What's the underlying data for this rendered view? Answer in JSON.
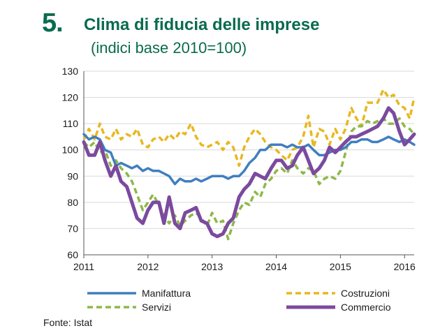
{
  "header": {
    "number": "5.",
    "title": "Clima di fiducia delle imprese",
    "subtitle": "(indici base 2010=100)"
  },
  "source": "Fonte: Istat",
  "chart_data": {
    "type": "line",
    "title": "Clima di fiducia delle imprese",
    "subtitle": "(indici base 2010=100)",
    "xlabel": "",
    "ylabel": "",
    "xlim": [
      2011,
      2016.15
    ],
    "ylim": [
      60,
      130
    ],
    "xticks": [
      2011,
      2012,
      2013,
      2014,
      2015,
      2016
    ],
    "yticks": [
      60,
      70,
      80,
      90,
      100,
      110,
      120,
      130
    ],
    "grid": "horizontal",
    "legend_position": "bottom",
    "series": [
      {
        "name": "Manifattura",
        "color": "#3f7fc0",
        "style": "solid",
        "x": [
          2011.0,
          2011.08,
          2011.17,
          2011.25,
          2011.33,
          2011.42,
          2011.5,
          2011.58,
          2011.67,
          2011.75,
          2011.83,
          2011.92,
          2012.0,
          2012.08,
          2012.17,
          2012.25,
          2012.33,
          2012.42,
          2012.5,
          2012.58,
          2012.67,
          2012.75,
          2012.83,
          2012.92,
          2013.0,
          2013.08,
          2013.17,
          2013.25,
          2013.33,
          2013.42,
          2013.5,
          2013.58,
          2013.67,
          2013.75,
          2013.83,
          2013.92,
          2014.0,
          2014.08,
          2014.17,
          2014.25,
          2014.33,
          2014.42,
          2014.5,
          2014.58,
          2014.67,
          2014.75,
          2014.83,
          2014.92,
          2015.0,
          2015.08,
          2015.17,
          2015.25,
          2015.33,
          2015.42,
          2015.5,
          2015.58,
          2015.67,
          2015.75,
          2015.83,
          2015.92,
          2016.0,
          2016.08,
          2016.15
        ],
        "values": [
          106,
          104,
          105,
          104,
          100,
          99,
          94,
          95,
          94,
          93,
          94,
          92,
          93,
          92,
          92,
          91,
          90,
          87,
          89,
          88,
          88,
          89,
          88,
          89,
          90,
          90,
          90,
          89,
          90,
          90,
          92,
          95,
          97,
          100,
          100,
          102,
          102,
          102,
          101,
          102,
          101,
          101,
          102,
          100,
          98,
          98,
          99,
          100,
          100,
          101,
          103,
          103,
          104,
          104,
          103,
          103,
          104,
          105,
          104,
          103,
          104,
          103,
          102
        ]
      },
      {
        "name": "Costruzioni",
        "color": "#e8b820",
        "style": "dashed",
        "x": [
          2011.0,
          2011.08,
          2011.17,
          2011.25,
          2011.33,
          2011.42,
          2011.5,
          2011.58,
          2011.67,
          2011.75,
          2011.83,
          2011.92,
          2012.0,
          2012.08,
          2012.17,
          2012.25,
          2012.33,
          2012.42,
          2012.5,
          2012.58,
          2012.67,
          2012.75,
          2012.83,
          2012.92,
          2013.0,
          2013.08,
          2013.17,
          2013.25,
          2013.33,
          2013.42,
          2013.5,
          2013.58,
          2013.67,
          2013.75,
          2013.83,
          2013.92,
          2014.0,
          2014.08,
          2014.17,
          2014.25,
          2014.33,
          2014.42,
          2014.5,
          2014.58,
          2014.67,
          2014.75,
          2014.83,
          2014.92,
          2015.0,
          2015.08,
          2015.17,
          2015.25,
          2015.33,
          2015.42,
          2015.5,
          2015.58,
          2015.67,
          2015.75,
          2015.83,
          2015.92,
          2016.0,
          2016.08,
          2016.15
        ],
        "values": [
          104,
          108,
          104,
          110,
          105,
          104,
          108,
          104,
          106,
          105,
          108,
          102,
          101,
          104,
          105,
          103,
          106,
          104,
          107,
          106,
          110,
          105,
          102,
          101,
          102,
          103,
          100,
          103,
          101,
          94,
          101,
          105,
          108,
          106,
          103,
          101,
          100,
          98,
          96,
          100,
          101,
          105,
          113,
          101,
          108,
          107,
          102,
          108,
          104,
          108,
          116,
          112,
          109,
          118,
          118,
          118,
          123,
          120,
          121,
          117,
          116,
          112,
          120
        ]
      },
      {
        "name": "Servizi",
        "color": "#8db848",
        "style": "dashed",
        "x": [
          2011.0,
          2011.08,
          2011.17,
          2011.25,
          2011.33,
          2011.42,
          2011.5,
          2011.58,
          2011.67,
          2011.75,
          2011.83,
          2011.92,
          2012.0,
          2012.08,
          2012.17,
          2012.25,
          2012.33,
          2012.42,
          2012.5,
          2012.58,
          2012.67,
          2012.75,
          2012.83,
          2012.92,
          2013.0,
          2013.08,
          2013.17,
          2013.25,
          2013.33,
          2013.42,
          2013.5,
          2013.58,
          2013.67,
          2013.75,
          2013.83,
          2013.92,
          2014.0,
          2014.08,
          2014.17,
          2014.25,
          2014.33,
          2014.42,
          2014.5,
          2014.58,
          2014.67,
          2014.75,
          2014.83,
          2014.92,
          2015.0,
          2015.08,
          2015.17,
          2015.25,
          2015.33,
          2015.42,
          2015.5,
          2015.58,
          2015.67,
          2015.75,
          2015.83,
          2015.92,
          2016.0,
          2016.08,
          2016.15
        ],
        "values": [
          103,
          101,
          103,
          99,
          100,
          94,
          96,
          93,
          91,
          88,
          83,
          77,
          80,
          83,
          79,
          75,
          72,
          75,
          71,
          73,
          75,
          76,
          74,
          71,
          76,
          72,
          73,
          66,
          72,
          77,
          80,
          79,
          84,
          82,
          87,
          89,
          92,
          93,
          91,
          96,
          93,
          91,
          93,
          92,
          87,
          89,
          90,
          89,
          92,
          99,
          107,
          109,
          109,
          111,
          110,
          111,
          112,
          110,
          110,
          112,
          109,
          108,
          106
        ]
      },
      {
        "name": "Commercio",
        "color": "#7b4a9e",
        "style": "solid",
        "x": [
          2011.0,
          2011.08,
          2011.17,
          2011.25,
          2011.33,
          2011.42,
          2011.5,
          2011.58,
          2011.67,
          2011.75,
          2011.83,
          2011.92,
          2012.0,
          2012.08,
          2012.17,
          2012.25,
          2012.33,
          2012.42,
          2012.5,
          2012.58,
          2012.67,
          2012.75,
          2012.83,
          2012.92,
          2013.0,
          2013.08,
          2013.17,
          2013.25,
          2013.33,
          2013.42,
          2013.5,
          2013.58,
          2013.67,
          2013.75,
          2013.83,
          2013.92,
          2014.0,
          2014.08,
          2014.17,
          2014.25,
          2014.33,
          2014.42,
          2014.5,
          2014.58,
          2014.67,
          2014.75,
          2014.83,
          2014.92,
          2015.0,
          2015.08,
          2015.17,
          2015.25,
          2015.33,
          2015.42,
          2015.5,
          2015.58,
          2015.67,
          2015.75,
          2015.83,
          2015.92,
          2016.0,
          2016.08,
          2016.15
        ],
        "values": [
          103,
          98,
          98,
          103,
          96,
          90,
          94,
          88,
          86,
          80,
          74,
          72,
          77,
          80,
          80,
          72,
          82,
          72,
          70,
          76,
          77,
          78,
          73,
          72,
          68,
          67,
          68,
          72,
          74,
          82,
          85,
          87,
          91,
          90,
          89,
          93,
          96,
          96,
          93,
          94,
          98,
          101,
          96,
          91,
          93,
          96,
          101,
          99,
          101,
          103,
          105,
          105,
          106,
          107,
          108,
          109,
          112,
          116,
          114,
          107,
          102,
          104,
          106
        ]
      }
    ]
  }
}
